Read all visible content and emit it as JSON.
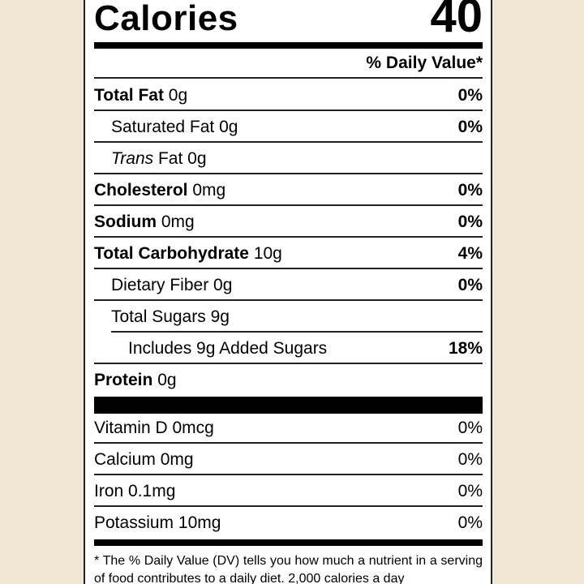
{
  "calories": {
    "label": "Calories",
    "value": "40"
  },
  "dv_header": "% Daily Value*",
  "nutrients": [
    {
      "name": "Total Fat",
      "amount": "0g",
      "dv": "0%",
      "bold": true,
      "indent": 0
    },
    {
      "name": "Saturated Fat",
      "amount": "0g",
      "dv": "0%",
      "bold": false,
      "indent": 1
    },
    {
      "name": "Trans",
      "name_suffix": "Fat",
      "amount": "0g",
      "dv": "",
      "bold": false,
      "indent": 1,
      "italic_prefix": true
    },
    {
      "name": "Cholesterol",
      "amount": "0mg",
      "dv": "0%",
      "bold": true,
      "indent": 0
    },
    {
      "name": "Sodium",
      "amount": "0mg",
      "dv": "0%",
      "bold": true,
      "indent": 0
    },
    {
      "name": "Total Carbohydrate",
      "amount": "10g",
      "dv": "4%",
      "bold": true,
      "indent": 0
    },
    {
      "name": "Dietary Fiber",
      "amount": "0g",
      "dv": "0%",
      "bold": false,
      "indent": 1
    },
    {
      "name": "Total Sugars",
      "amount": "9g",
      "dv": "",
      "bold": false,
      "indent": 1
    },
    {
      "name": "Includes 9g Added Sugars",
      "amount": "",
      "dv": "18%",
      "bold": false,
      "indent": 2
    },
    {
      "name": "Protein",
      "amount": "0g",
      "dv": "",
      "bold": true,
      "indent": 0
    }
  ],
  "vitamins": [
    {
      "name": "Vitamin D",
      "amount": "0mcg",
      "dv": "0%"
    },
    {
      "name": "Calcium",
      "amount": "0mg",
      "dv": "0%"
    },
    {
      "name": "Iron",
      "amount": "0.1mg",
      "dv": "0%"
    },
    {
      "name": "Potassium",
      "amount": "10mg",
      "dv": "0%"
    }
  ],
  "footnote": "* The % Daily Value (DV) tells you how much a nutrient in a serving of food contributes to a daily diet. 2,000 calories a day"
}
